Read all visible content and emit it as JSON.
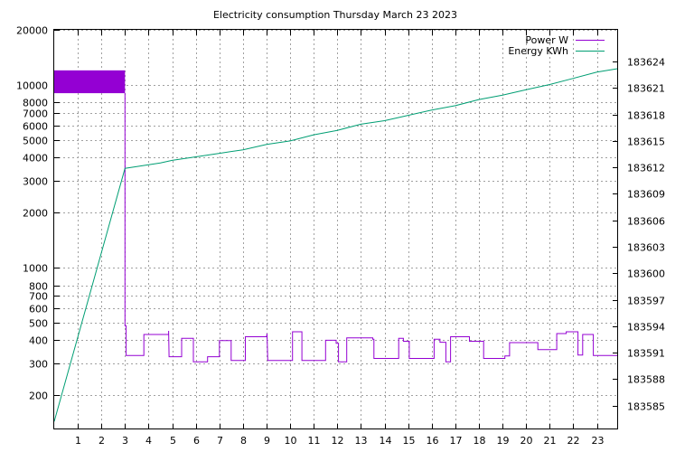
{
  "chart_data": {
    "type": "line",
    "title": "Electricity consumption Thursday March 23 2023",
    "xlabel": "",
    "ylabel": "",
    "x_range": [
      0,
      23.9
    ],
    "x_ticks": [
      1,
      2,
      3,
      4,
      5,
      6,
      7,
      8,
      9,
      10,
      11,
      12,
      13,
      14,
      15,
      16,
      17,
      18,
      19,
      20,
      21,
      22,
      23
    ],
    "y_left": {
      "scale": "log",
      "range": [
        130,
        20000
      ],
      "tick_values": [
        200,
        300,
        400,
        500,
        600,
        700,
        800,
        1000,
        2000,
        3000,
        4000,
        5000,
        6000,
        7000,
        8000,
        10000,
        20000
      ],
      "tick_labels": [
        "200",
        "300",
        "400",
        "500",
        "600",
        "700",
        "800",
        "1000",
        "2000",
        "3000",
        "4000",
        "5000",
        "6000",
        "7000",
        "8000",
        "10000",
        "20000"
      ]
    },
    "y_right": {
      "scale": "linear",
      "range": [
        183582.3,
        183627.6
      ],
      "tick_values": [
        183585,
        183588,
        183591,
        183594,
        183597,
        183600,
        183603,
        183606,
        183609,
        183612,
        183615,
        183618,
        183621,
        183624
      ],
      "tick_labels": [
        "183585",
        "183588",
        "183591",
        "183594",
        "183597",
        "183600",
        "183603",
        "183606",
        "183609",
        "183612",
        "183615",
        "183618",
        "183621",
        "183624"
      ]
    },
    "grid": true,
    "legend_position": "top-right",
    "series": [
      {
        "name": "Power W",
        "color": "#9400d3",
        "axis": "left",
        "band": {
          "x": [
            0,
            3.0
          ],
          "y": [
            9000,
            12000
          ]
        },
        "points": [
          [
            3.0,
            9000
          ],
          [
            3.0,
            480
          ],
          [
            3.05,
            480
          ],
          [
            3.05,
            330
          ],
          [
            3.8,
            330
          ],
          [
            3.8,
            430
          ],
          [
            4.85,
            430
          ],
          [
            4.85,
            450
          ],
          [
            4.87,
            325
          ],
          [
            5.4,
            325
          ],
          [
            5.4,
            410
          ],
          [
            5.9,
            410
          ],
          [
            5.9,
            305
          ],
          [
            6.5,
            305
          ],
          [
            6.5,
            325
          ],
          [
            7.0,
            325
          ],
          [
            7.0,
            398
          ],
          [
            7.5,
            398
          ],
          [
            7.5,
            310
          ],
          [
            8.1,
            310
          ],
          [
            8.1,
            418
          ],
          [
            9.0,
            418
          ],
          [
            9.02,
            435
          ],
          [
            9.05,
            310
          ],
          [
            10.1,
            310
          ],
          [
            10.1,
            445
          ],
          [
            10.5,
            445
          ],
          [
            10.5,
            310
          ],
          [
            11.5,
            310
          ],
          [
            11.5,
            400
          ],
          [
            11.95,
            400
          ],
          [
            11.95,
            385
          ],
          [
            12.05,
            385
          ],
          [
            12.05,
            305
          ],
          [
            12.4,
            305
          ],
          [
            12.4,
            412
          ],
          [
            13.5,
            412
          ],
          [
            13.5,
            405
          ],
          [
            13.55,
            405
          ],
          [
            13.55,
            318
          ],
          [
            14.6,
            318
          ],
          [
            14.6,
            410
          ],
          [
            14.8,
            410
          ],
          [
            14.8,
            395
          ],
          [
            15.05,
            395
          ],
          [
            15.05,
            318
          ],
          [
            16.1,
            318
          ],
          [
            16.1,
            405
          ],
          [
            16.35,
            405
          ],
          [
            16.35,
            390
          ],
          [
            16.6,
            390
          ],
          [
            16.6,
            305
          ],
          [
            16.8,
            305
          ],
          [
            16.8,
            418
          ],
          [
            17.6,
            418
          ],
          [
            17.6,
            395
          ],
          [
            18.2,
            395
          ],
          [
            18.2,
            318
          ],
          [
            19.1,
            318
          ],
          [
            19.1,
            328
          ],
          [
            19.3,
            328
          ],
          [
            19.3,
            388
          ],
          [
            20.5,
            388
          ],
          [
            20.5,
            355
          ],
          [
            21.3,
            355
          ],
          [
            21.3,
            435
          ],
          [
            21.7,
            435
          ],
          [
            21.7,
            445
          ],
          [
            22.2,
            445
          ],
          [
            22.2,
            332
          ],
          [
            22.4,
            332
          ],
          [
            22.4,
            430
          ],
          [
            22.85,
            430
          ],
          [
            22.85,
            330
          ],
          [
            23.9,
            330
          ]
        ]
      },
      {
        "name": "Energy KWh",
        "color": "#009e73",
        "axis": "right",
        "points": [
          [
            0,
            183583.2
          ],
          [
            3.0,
            183611.9
          ],
          [
            3.5,
            183612.1
          ],
          [
            4.5,
            183612.5
          ],
          [
            5,
            183612.8
          ],
          [
            6,
            183613.2
          ],
          [
            7,
            183613.6
          ],
          [
            8,
            183614.0
          ],
          [
            9,
            183614.6
          ],
          [
            10,
            183615.0
          ],
          [
            11,
            183615.7
          ],
          [
            12,
            183616.2
          ],
          [
            13,
            183616.9
          ],
          [
            14,
            183617.3
          ],
          [
            15,
            183617.9
          ],
          [
            16,
            183618.5
          ],
          [
            17,
            183619.0
          ],
          [
            18,
            183619.7
          ],
          [
            19,
            183620.2
          ],
          [
            20,
            183620.8
          ],
          [
            21,
            183621.4
          ],
          [
            22,
            183622.1
          ],
          [
            23,
            183622.8
          ],
          [
            23.9,
            183623.2
          ]
        ]
      }
    ]
  }
}
